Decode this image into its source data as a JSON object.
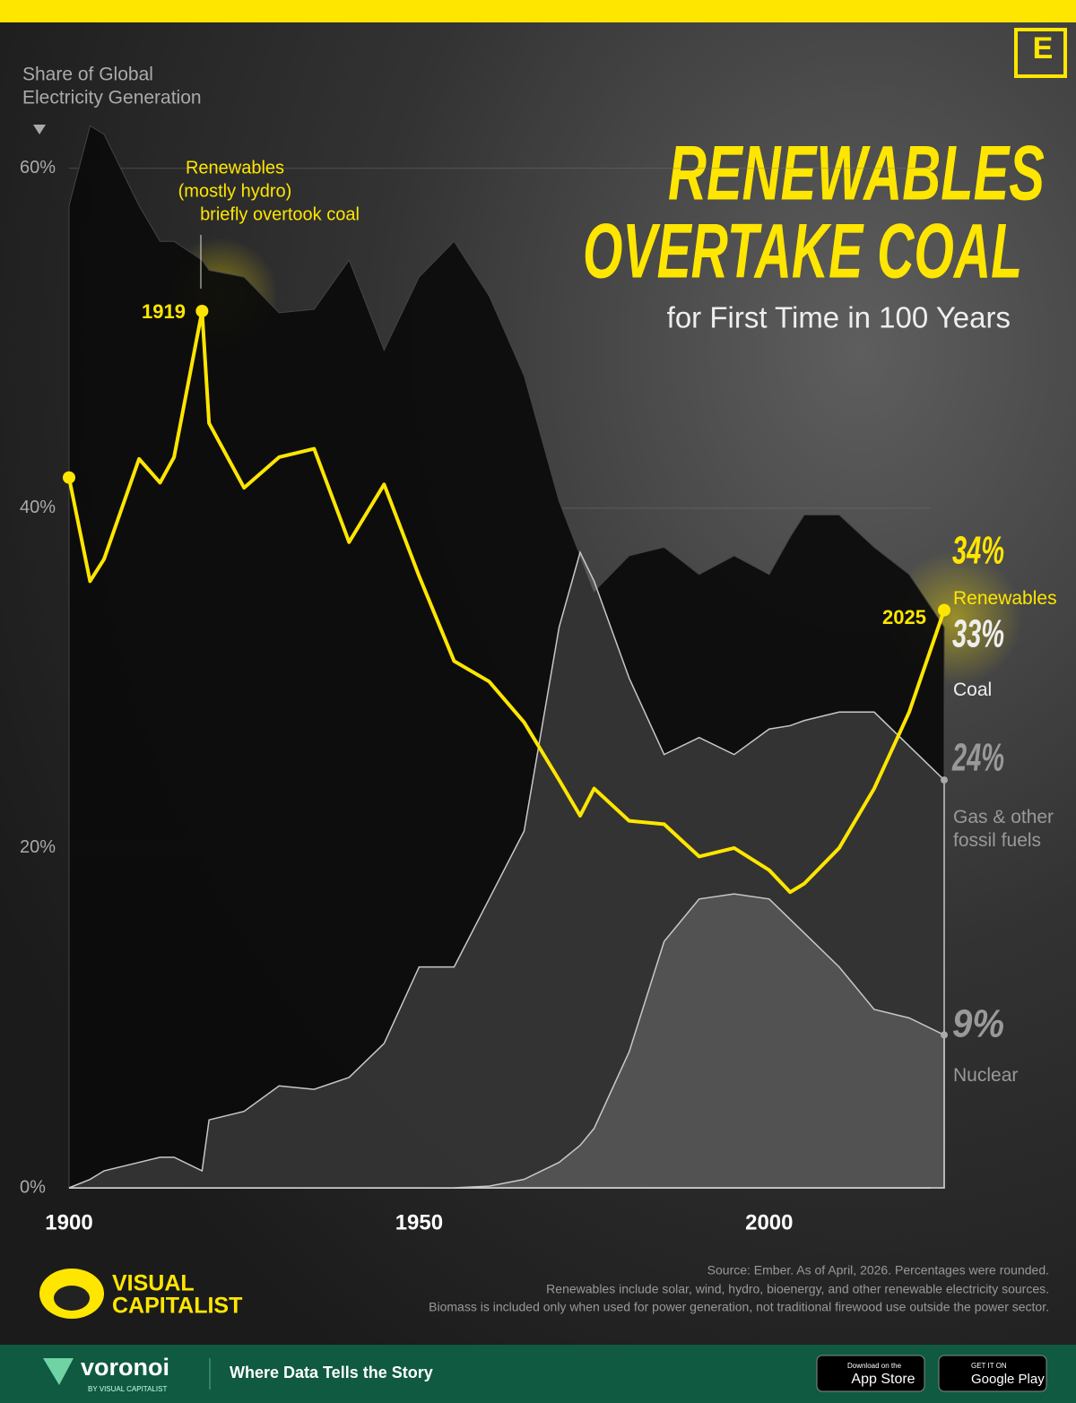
{
  "chart_data": {
    "type": "line",
    "title": [
      "RENEWABLES",
      "OVERTAKE COAL"
    ],
    "subtitle": "for First Time in 100 Years",
    "ylabel": [
      "Share of Global",
      "Electricity Generation"
    ],
    "annotation": [
      "Renewables",
      "(mostly hydro)",
      "briefly overtook coal"
    ],
    "x": [
      1900,
      1903,
      1905,
      1910,
      1913,
      1915,
      1919,
      1920,
      1925,
      1930,
      1935,
      1940,
      1945,
      1950,
      1955,
      1960,
      1965,
      1970,
      1973,
      1975,
      1980,
      1985,
      1990,
      1995,
      2000,
      2003,
      2005,
      2010,
      2015,
      2020,
      2025
    ],
    "xlim": [
      1900,
      2025
    ],
    "xticks": [
      1900,
      1950,
      2000
    ],
    "ylim": [
      0,
      65
    ],
    "yticks": [
      {
        "value": 0,
        "label": "0%"
      },
      {
        "value": 20,
        "label": "20%"
      },
      {
        "value": 40,
        "label": "40%"
      },
      {
        "value": 60,
        "label": "60%"
      }
    ],
    "grid": true,
    "series": [
      {
        "name": "Coal",
        "type": "area",
        "color": "#0c0c0c",
        "end_label": "33%",
        "values": [
          57.8,
          62.5,
          62,
          57.8,
          55.7,
          55.7,
          54.6,
          54,
          53.6,
          51.5,
          51.7,
          54.6,
          49.3,
          53.6,
          55.7,
          52.5,
          47.8,
          40.4,
          37.2,
          35.1,
          37.2,
          37.7,
          36.1,
          37.2,
          36.1,
          38.3,
          39.6,
          39.6,
          37.7,
          36.1,
          33
        ]
      },
      {
        "name": "Gas & other fossil fuels",
        "type": "area",
        "color": "#8a8a8a",
        "end_label": "24%",
        "values": [
          0,
          0.5,
          1,
          1.5,
          1.8,
          1.8,
          1,
          4,
          4.5,
          6,
          5.8,
          6.5,
          8.5,
          13,
          13,
          17,
          21,
          33,
          37.4,
          35.7,
          30,
          25.5,
          26.5,
          25.5,
          27,
          27.2,
          27.5,
          28,
          28,
          26,
          24
        ]
      },
      {
        "name": "Nuclear",
        "type": "area",
        "color": "#9a9a9a",
        "end_label": "9%",
        "values": [
          null,
          null,
          null,
          null,
          null,
          null,
          null,
          null,
          null,
          null,
          null,
          null,
          null,
          null,
          0,
          0.1,
          0.5,
          1.5,
          2.5,
          3.5,
          8,
          14.5,
          17,
          17.3,
          17,
          15.8,
          15,
          13,
          10.5,
          10,
          9
        ]
      },
      {
        "name": "Renewables",
        "type": "line",
        "color": "#ffe600",
        "end_label": "34%",
        "values": [
          41.8,
          35.7,
          37,
          42.9,
          41.5,
          43,
          51.6,
          45,
          41.2,
          43,
          43.5,
          38,
          41.4,
          36,
          31,
          29.8,
          27.4,
          24,
          21.9,
          23.5,
          21.6,
          21.4,
          19.5,
          20,
          18.7,
          17.4,
          17.9,
          20,
          23.5,
          28,
          34
        ]
      }
    ],
    "notes": [
      "Source: Ember. As of April, 2026. Percentages were rounded.",
      "Renewables include solar, wind, hydro, bioenergy, and other renewable electricity sources.",
      "Biomass is included only when used for power generation, not traditional firewood use outside the power sector."
    ]
  },
  "branding": {
    "logo_letter": "E",
    "brand": [
      "VISUAL",
      "CAPITALIST"
    ],
    "footer_brand": "voronoi",
    "footer_sub": "BY VISUAL CAPITALIST",
    "tagline": "Where Data Tells the Story",
    "app_store": [
      "Download on the",
      "App Store"
    ],
    "google_play": [
      "GET IT ON",
      "Google Play"
    ]
  }
}
